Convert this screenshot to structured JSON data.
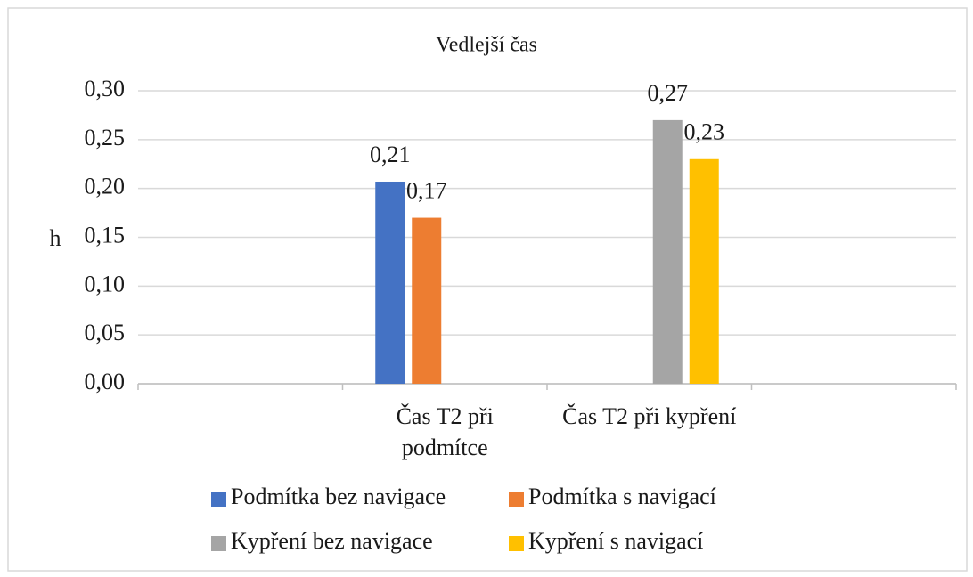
{
  "chart_data": {
    "type": "bar",
    "title": "Vedlejší čas",
    "y_label": "h",
    "categories": [
      null,
      "Čas T2 při podmítce",
      "Čas T2 při kypření",
      null
    ],
    "series": [
      {
        "name": "Podmítka bez navigace",
        "color": "#4472c4",
        "values": [
          null,
          0.207,
          null,
          null
        ],
        "value_labels": [
          null,
          "0,21",
          null,
          null
        ]
      },
      {
        "name": "Podmítka s navigací",
        "color": "#ed7d31",
        "values": [
          null,
          0.17,
          null,
          null
        ],
        "value_labels": [
          null,
          "0,17",
          null,
          null
        ]
      },
      {
        "name": "Kypření bez navigace",
        "color": "#a5a5a5",
        "values": [
          null,
          null,
          0.27,
          null
        ],
        "value_labels": [
          null,
          null,
          "0,27",
          null
        ]
      },
      {
        "name": "Kypření s navigací",
        "color": "#ffc000",
        "values": [
          null,
          null,
          0.23,
          null
        ],
        "value_labels": [
          null,
          null,
          "0,23",
          null
        ]
      }
    ],
    "ylim": [
      0,
      0.3
    ],
    "yticks": [
      {
        "value": 0,
        "label": "0,00"
      },
      {
        "value": 0.05,
        "label": "0,05"
      },
      {
        "value": 0.1,
        "label": "0,10"
      },
      {
        "value": 0.15,
        "label": "0,15"
      },
      {
        "value": 0.2,
        "label": "0,20"
      },
      {
        "value": 0.25,
        "label": "0,25"
      },
      {
        "value": 0.3,
        "label": "0,30"
      }
    ],
    "grid": true,
    "legend": "bottom"
  }
}
